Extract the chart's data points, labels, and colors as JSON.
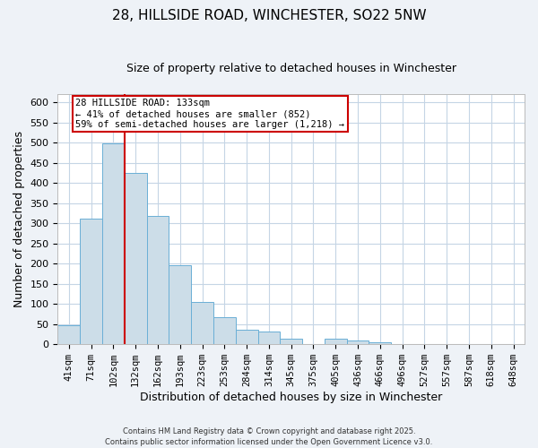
{
  "title": "28, HILLSIDE ROAD, WINCHESTER, SO22 5NW",
  "subtitle": "Size of property relative to detached houses in Winchester",
  "xlabel": "Distribution of detached houses by size in Winchester",
  "ylabel": "Number of detached properties",
  "bin_labels": [
    "41sqm",
    "71sqm",
    "102sqm",
    "132sqm",
    "162sqm",
    "193sqm",
    "223sqm",
    "253sqm",
    "284sqm",
    "314sqm",
    "345sqm",
    "375sqm",
    "405sqm",
    "436sqm",
    "466sqm",
    "496sqm",
    "527sqm",
    "557sqm",
    "587sqm",
    "618sqm",
    "648sqm"
  ],
  "bar_values": [
    47,
    312,
    497,
    424,
    319,
    195,
    105,
    68,
    35,
    32,
    13,
    0,
    13,
    9,
    4,
    1,
    0,
    1,
    0,
    0,
    0
  ],
  "bar_color": "#ccdde8",
  "bar_edge_color": "#6aafd6",
  "ylim": [
    0,
    620
  ],
  "yticks": [
    0,
    50,
    100,
    150,
    200,
    250,
    300,
    350,
    400,
    450,
    500,
    550,
    600
  ],
  "vline_x": 2.5,
  "vline_color": "#cc0000",
  "annotation_line1": "28 HILLSIDE ROAD: 133sqm",
  "annotation_line2": "← 41% of detached houses are smaller (852)",
  "annotation_line3": "59% of semi-detached houses are larger (1,218) →",
  "annotation_box_color": "#cc0000",
  "annotation_box_facecolor": "white",
  "footer_line1": "Contains HM Land Registry data © Crown copyright and database right 2025.",
  "footer_line2": "Contains public sector information licensed under the Open Government Licence v3.0.",
  "background_color": "#eef2f7",
  "plot_bg_color": "white",
  "grid_color": "#c5d5e5",
  "title_fontsize": 11,
  "subtitle_fontsize": 9,
  "xlabel_fontsize": 9,
  "ylabel_fontsize": 9,
  "tick_fontsize": 7.5,
  "ytick_fontsize": 8
}
